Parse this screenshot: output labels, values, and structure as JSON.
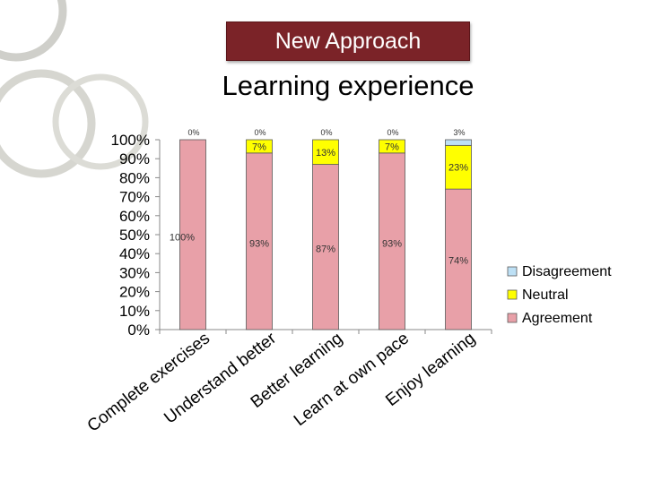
{
  "slide": {
    "banner": "New Approach",
    "subtitle": "Learning experience"
  },
  "colors": {
    "banner_bg": "#7b2328",
    "agreement": "#e8a0a8",
    "neutral": "#ffff00",
    "disagreement": "#bde0f5"
  },
  "chart_data": {
    "type": "bar",
    "stacked": true,
    "percent_stacked": true,
    "title": "",
    "xlabel": "",
    "ylabel": "",
    "ylim": [
      0,
      100
    ],
    "y_ticks": [
      "0%",
      "10%",
      "20%",
      "30%",
      "40%",
      "50%",
      "60%",
      "70%",
      "80%",
      "90%",
      "100%"
    ],
    "categories": [
      "Complete exercises",
      "Understand better",
      "Better learning",
      "Learn at own pace",
      "Enjoy learning"
    ],
    "series": [
      {
        "name": "Agreement",
        "color": "#e8a0a8",
        "values": [
          100,
          93,
          87,
          93,
          74
        ],
        "labels": [
          "100%",
          "93%",
          "87%",
          "93%",
          "74%"
        ]
      },
      {
        "name": "Neutral",
        "color": "#ffff00",
        "values": [
          0,
          7,
          13,
          7,
          23
        ],
        "labels": [
          "",
          "7%",
          "13%",
          "7%",
          "23%"
        ]
      },
      {
        "name": "Disagreement",
        "color": "#bde0f5",
        "values": [
          0,
          0,
          0,
          0,
          3
        ],
        "labels": [
          "0%",
          "0%",
          "0%",
          "0%",
          "3%"
        ]
      }
    ],
    "legend_position": "right",
    "legend_order": [
      "Disagreement",
      "Neutral",
      "Agreement"
    ],
    "grid": false
  }
}
